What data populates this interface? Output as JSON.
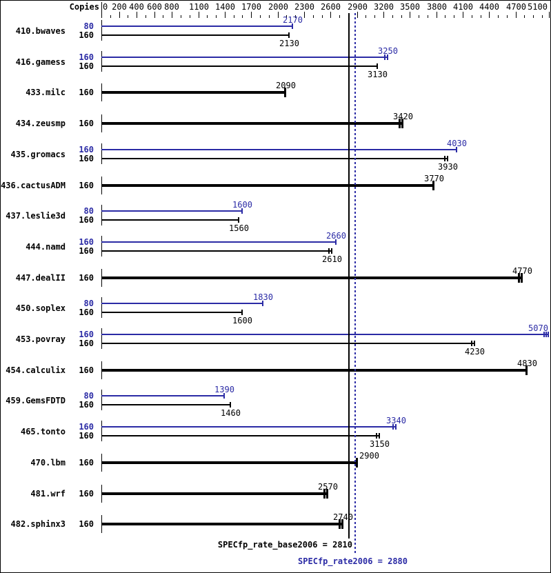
{
  "header": {
    "copies_label": "Copies"
  },
  "colors": {
    "peak_blue": "#2a2aa5",
    "base_black": "#000000",
    "background": "#ffffff",
    "border": "#000000"
  },
  "axis": {
    "min": 0,
    "max": 5100,
    "minor_tick_interval": 100,
    "labels": [
      0,
      200,
      400,
      600,
      800,
      1100,
      1400,
      1700,
      2000,
      2300,
      2600,
      2900,
      3200,
      3500,
      3800,
      4100,
      4400,
      4700,
      5100
    ]
  },
  "reference_lines": [
    {
      "name": "base",
      "label": "SPECfp_rate_base2006 = 2810",
      "value": 2810,
      "style": "solid",
      "color": "black"
    },
    {
      "name": "peak",
      "label": "SPECfp_rate2006 = 2880",
      "value": 2880,
      "style": "dotted",
      "color": "blue"
    }
  ],
  "chart_data": {
    "type": "bar",
    "orientation": "horizontal",
    "xlim": [
      0,
      5100
    ],
    "grid": false,
    "copies_column_header": "Copies",
    "benchmarks": [
      {
        "name": "410.bwaves",
        "bars": [
          {
            "color": "blue",
            "copies": 80,
            "value": 2170,
            "end_ticks": 1
          },
          {
            "color": "black",
            "copies": 160,
            "value": 2130,
            "end_ticks": 1
          }
        ]
      },
      {
        "name": "416.gamess",
        "bars": [
          {
            "color": "blue",
            "copies": 160,
            "value": 3250,
            "end_ticks": 2
          },
          {
            "color": "black",
            "copies": 160,
            "value": 3130,
            "end_ticks": 1
          }
        ]
      },
      {
        "name": "433.milc",
        "bars": [
          {
            "color": "black",
            "copies": 160,
            "value": 2090,
            "end_ticks": 1,
            "thick": true
          }
        ]
      },
      {
        "name": "434.zeusmp",
        "bars": [
          {
            "color": "black",
            "copies": 160,
            "value": 3420,
            "end_ticks": 2,
            "thick": true
          }
        ]
      },
      {
        "name": "435.gromacs",
        "bars": [
          {
            "color": "blue",
            "copies": 160,
            "value": 4030,
            "end_ticks": 1
          },
          {
            "color": "black",
            "copies": 160,
            "value": 3930,
            "end_ticks": 2
          }
        ]
      },
      {
        "name": "436.cactusADM",
        "bars": [
          {
            "color": "black",
            "copies": 160,
            "value": 3770,
            "end_ticks": 1,
            "thick": true
          }
        ]
      },
      {
        "name": "437.leslie3d",
        "bars": [
          {
            "color": "blue",
            "copies": 80,
            "value": 1600,
            "end_ticks": 1
          },
          {
            "color": "black",
            "copies": 160,
            "value": 1560,
            "end_ticks": 1
          }
        ]
      },
      {
        "name": "444.namd",
        "bars": [
          {
            "color": "blue",
            "copies": 160,
            "value": 2660,
            "end_ticks": 1
          },
          {
            "color": "black",
            "copies": 160,
            "value": 2610,
            "end_ticks": 2
          }
        ]
      },
      {
        "name": "447.dealII",
        "bars": [
          {
            "color": "black",
            "copies": 160,
            "value": 4770,
            "end_ticks": 2,
            "thick": true
          }
        ]
      },
      {
        "name": "450.soplex",
        "bars": [
          {
            "color": "blue",
            "copies": 80,
            "value": 1830,
            "end_ticks": 1
          },
          {
            "color": "black",
            "copies": 160,
            "value": 1600,
            "end_ticks": 1
          }
        ]
      },
      {
        "name": "453.povray",
        "bars": [
          {
            "color": "blue",
            "copies": 160,
            "value": 5070,
            "end_ticks": 3
          },
          {
            "color": "black",
            "copies": 160,
            "value": 4230,
            "end_ticks": 2
          }
        ]
      },
      {
        "name": "454.calculix",
        "bars": [
          {
            "color": "black",
            "copies": 160,
            "value": 4830,
            "end_ticks": 1,
            "thick": true
          }
        ]
      },
      {
        "name": "459.GemsFDTD",
        "bars": [
          {
            "color": "blue",
            "copies": 80,
            "value": 1390,
            "end_ticks": 1
          },
          {
            "color": "black",
            "copies": 160,
            "value": 1460,
            "end_ticks": 1
          }
        ]
      },
      {
        "name": "465.tonto",
        "bars": [
          {
            "color": "blue",
            "copies": 160,
            "value": 3340,
            "end_ticks": 2
          },
          {
            "color": "black",
            "copies": 160,
            "value": 3150,
            "end_ticks": 2
          }
        ]
      },
      {
        "name": "470.lbm",
        "bars": [
          {
            "color": "black",
            "copies": 160,
            "value": 2900,
            "end_ticks": 1,
            "thick": true,
            "label_dx": 17
          }
        ]
      },
      {
        "name": "481.wrf",
        "bars": [
          {
            "color": "black",
            "copies": 160,
            "value": 2570,
            "end_ticks": 2,
            "thick": true
          }
        ]
      },
      {
        "name": "482.sphinx3",
        "bars": [
          {
            "color": "black",
            "copies": 160,
            "value": 2740,
            "end_ticks": 2,
            "thick": true
          }
        ]
      }
    ]
  }
}
